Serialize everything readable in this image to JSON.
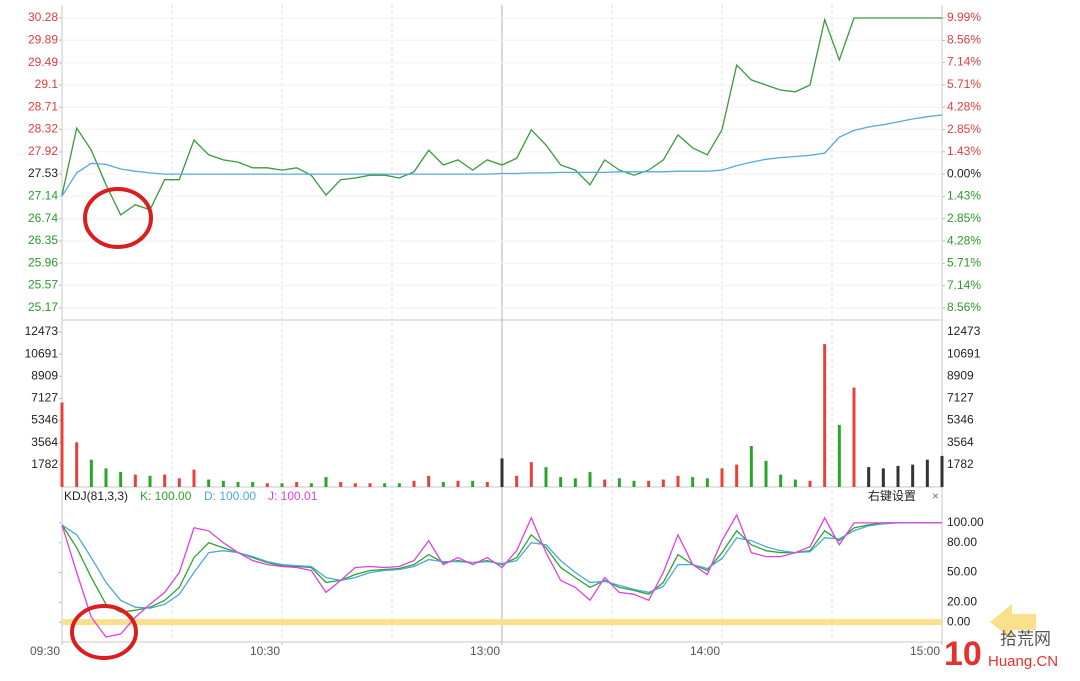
{
  "chart_data": [
    {
      "type": "line",
      "base": 27.53,
      "up_color": "#e03c3c",
      "down_color": "#2a9a2a",
      "base_color": "#222222",
      "tick_side": "left",
      "grid": true,
      "xlim": [
        0,
        240
      ],
      "xgrid": [
        30,
        60,
        90,
        120,
        150,
        180,
        210
      ],
      "x": [
        0,
        4,
        8,
        12,
        16,
        20,
        24,
        28,
        32,
        36,
        40,
        44,
        48,
        52,
        56,
        60,
        64,
        68,
        72,
        76,
        80,
        84,
        88,
        92,
        96,
        100,
        104,
        108,
        112,
        116,
        120,
        124,
        128,
        132,
        136,
        140,
        144,
        148,
        152,
        156,
        160,
        164,
        168,
        172,
        176,
        180,
        184,
        188,
        192,
        196,
        200,
        204,
        208,
        212,
        216,
        220,
        224,
        228,
        232,
        236,
        240
      ],
      "ylim": [
        25.17,
        30.28
      ],
      "yticks": [
        30.28,
        29.89,
        29.49,
        29.1,
        28.71,
        28.32,
        27.92,
        27.53,
        27.14,
        26.74,
        26.35,
        25.96,
        25.57,
        25.17
      ],
      "y2lim": [
        -8.56,
        9.99
      ],
      "y2ticks": [
        {
          "value": 9.99,
          "label": "9.99%"
        },
        {
          "value": 8.56,
          "label": "8.56%"
        },
        {
          "value": 7.14,
          "label": "7.14%"
        },
        {
          "value": 5.71,
          "label": "5.71%"
        },
        {
          "value": 4.28,
          "label": "4.28%"
        },
        {
          "value": 2.85,
          "label": "2.85%"
        },
        {
          "value": 1.43,
          "label": "1.43%"
        },
        {
          "value": 0,
          "label": "0.00%"
        },
        {
          "value": -1.43,
          "label": "1.43%"
        },
        {
          "value": -2.85,
          "label": "2.85%"
        },
        {
          "value": -4.28,
          "label": "4.28%"
        },
        {
          "value": -5.71,
          "label": "5.71%"
        },
        {
          "value": -7.14,
          "label": "7.14%"
        },
        {
          "value": -8.56,
          "label": "8.56%"
        }
      ],
      "series": [
        {
          "color": "#3a9a3a",
          "values": [
            27.16,
            28.34,
            27.95,
            27.34,
            26.81,
            26.99,
            26.9,
            27.43,
            27.43,
            28.13,
            27.87,
            27.78,
            27.74,
            27.64,
            27.64,
            27.6,
            27.64,
            27.51,
            27.16,
            27.43,
            27.46,
            27.51,
            27.51,
            27.46,
            27.57,
            27.95,
            27.69,
            27.78,
            27.6,
            27.78,
            27.69,
            27.81,
            28.31,
            28.04,
            27.69,
            27.6,
            27.34,
            27.78,
            27.6,
            27.51,
            27.6,
            27.78,
            28.22,
            27.99,
            27.87,
            28.31,
            29.45,
            29.19,
            29.1,
            29.01,
            28.98,
            29.1,
            30.25,
            29.54,
            30.28,
            30.28,
            30.28,
            30.28,
            30.28,
            30.28,
            30.28
          ]
        },
        {
          "color": "#55a9e0",
          "values": [
            27.14,
            27.55,
            27.72,
            27.7,
            27.62,
            27.58,
            27.55,
            27.53,
            27.53,
            27.53,
            27.53,
            27.53,
            27.53,
            27.53,
            27.53,
            27.53,
            27.53,
            27.53,
            27.53,
            27.53,
            27.53,
            27.53,
            27.53,
            27.53,
            27.53,
            27.53,
            27.53,
            27.53,
            27.53,
            27.53,
            27.54,
            27.54,
            27.55,
            27.55,
            27.56,
            27.56,
            27.56,
            27.56,
            27.57,
            27.57,
            27.57,
            27.57,
            27.58,
            27.58,
            27.58,
            27.6,
            27.68,
            27.74,
            27.79,
            27.82,
            27.84,
            27.86,
            27.9,
            28.18,
            28.3,
            28.36,
            28.4,
            28.45,
            28.5,
            28.54,
            28.57
          ]
        }
      ]
    },
    {
      "type": "bar",
      "tick_side": "both",
      "xlim": [
        0,
        240
      ],
      "x": [
        0,
        4,
        8,
        12,
        16,
        20,
        24,
        28,
        32,
        36,
        40,
        44,
        48,
        52,
        56,
        60,
        64,
        68,
        72,
        76,
        80,
        84,
        88,
        92,
        96,
        100,
        104,
        108,
        112,
        116,
        120,
        124,
        128,
        132,
        136,
        140,
        144,
        148,
        152,
        156,
        160,
        164,
        168,
        172,
        176,
        180,
        184,
        188,
        192,
        196,
        200,
        204,
        208,
        212,
        216,
        220,
        224,
        228,
        232,
        236,
        240
      ],
      "ylim": [
        0,
        12473
      ],
      "yticks": [
        12473,
        10691,
        8909,
        7127,
        5346,
        3564,
        1782
      ],
      "values": [
        6800,
        3600,
        2200,
        1500,
        1200,
        1000,
        900,
        1000,
        700,
        1400,
        600,
        500,
        400,
        400,
        300,
        300,
        400,
        300,
        800,
        400,
        300,
        300,
        300,
        300,
        500,
        900,
        400,
        500,
        500,
        400,
        2300,
        900,
        2000,
        1600,
        800,
        700,
        1200,
        600,
        700,
        500,
        500,
        600,
        900,
        800,
        700,
        1500,
        1800,
        3300,
        2100,
        1000,
        600,
        500,
        11500,
        5000,
        8000,
        1600,
        1500,
        1700,
        1800,
        2200,
        2500
      ],
      "colors": [
        "#e8413c",
        "#e8413c",
        "#2aa52a",
        "#2aa52a",
        "#2aa52a",
        "#e8413c",
        "#2aa52a",
        "#e8413c",
        "#e8413c",
        "#e8413c",
        "#2aa52a",
        "#2aa52a",
        "#2aa52a",
        "#2aa52a",
        "#e8413c",
        "#2aa52a",
        "#e8413c",
        "#2aa52a",
        "#2aa52a",
        "#e8413c",
        "#e8413c",
        "#e8413c",
        "#2aa52a",
        "#2aa52a",
        "#e8413c",
        "#e8413c",
        "#2aa52a",
        "#e8413c",
        "#2aa52a",
        "#e8413c",
        "#333333",
        "#e8413c",
        "#e8413c",
        "#2aa52a",
        "#2aa52a",
        "#2aa52a",
        "#2aa52a",
        "#e8413c",
        "#2aa52a",
        "#2aa52a",
        "#e8413c",
        "#e8413c",
        "#e8413c",
        "#2aa52a",
        "#2aa52a",
        "#e8413c",
        "#e8413c",
        "#2aa52a",
        "#2aa52a",
        "#2aa52a",
        "#2aa52a",
        "#e8413c",
        "#e8413c",
        "#2aa52a",
        "#e8413c",
        "#333333",
        "#333333",
        "#333333",
        "#333333",
        "#333333",
        "#333333"
      ]
    },
    {
      "type": "line",
      "title": "KDJ(81,3,3)",
      "menu": "右键设置",
      "close": "×",
      "tick_side": "right",
      "highlight": 0,
      "highlight_color": "#f9e08c",
      "xlim": [
        0,
        240
      ],
      "xticks": [
        {
          "value": 0,
          "label": "09:30"
        },
        {
          "value": 60,
          "label": "10:30"
        },
        {
          "value": 120,
          "label": "13:00"
        },
        {
          "value": 180,
          "label": "14:00"
        },
        {
          "value": 240,
          "label": "15:00"
        }
      ],
      "x": [
        0,
        4,
        8,
        12,
        16,
        20,
        24,
        28,
        32,
        36,
        40,
        44,
        48,
        52,
        56,
        60,
        64,
        68,
        72,
        76,
        80,
        84,
        88,
        92,
        96,
        100,
        104,
        108,
        112,
        116,
        120,
        124,
        128,
        132,
        136,
        140,
        144,
        148,
        152,
        156,
        160,
        164,
        168,
        172,
        176,
        180,
        184,
        188,
        192,
        196,
        200,
        204,
        208,
        212,
        216,
        220,
        224,
        228,
        232,
        236,
        240
      ],
      "ylim": [
        -18,
        118
      ],
      "yticks": [
        {
          "value": 100,
          "label": "100.00"
        },
        {
          "value": 80,
          "label": "80.00"
        },
        {
          "value": 50,
          "label": "50.00"
        },
        {
          "value": 20,
          "label": "20.00"
        },
        {
          "value": 0,
          "label": "0.00"
        }
      ],
      "series": [
        {
          "name": "K: 100.00",
          "color": "#2aa52a",
          "values": [
            98,
            75,
            45,
            18,
            10,
            12,
            15,
            22,
            35,
            65,
            80,
            75,
            70,
            65,
            60,
            57,
            56,
            55,
            40,
            42,
            48,
            52,
            53,
            54,
            58,
            68,
            60,
            62,
            60,
            62,
            58,
            65,
            88,
            75,
            55,
            45,
            35,
            42,
            35,
            32,
            28,
            40,
            68,
            58,
            52,
            70,
            92,
            78,
            72,
            70,
            70,
            72,
            92,
            82,
            95,
            98,
            100,
            100,
            100,
            100,
            100
          ]
        },
        {
          "name": "D: 100.00",
          "color": "#4aa8d8",
          "values": [
            98,
            88,
            65,
            40,
            22,
            15,
            14,
            18,
            28,
            50,
            70,
            72,
            70,
            66,
            61,
            58,
            57,
            56,
            45,
            42,
            45,
            50,
            52,
            53,
            56,
            63,
            61,
            61,
            60,
            61,
            59,
            62,
            80,
            78,
            62,
            50,
            40,
            41,
            37,
            33,
            30,
            36,
            58,
            58,
            54,
            64,
            85,
            82,
            76,
            72,
            70,
            71,
            85,
            84,
            92,
            97,
            99,
            100,
            100,
            100,
            100
          ]
        },
        {
          "name": "J: 100.01",
          "color": "#e040e0",
          "values": [
            98,
            50,
            5,
            -15,
            -12,
            5,
            18,
            30,
            50,
            95,
            92,
            80,
            70,
            62,
            58,
            56,
            55,
            52,
            30,
            42,
            55,
            56,
            55,
            56,
            62,
            82,
            58,
            65,
            58,
            65,
            55,
            72,
            105,
            70,
            42,
            35,
            22,
            45,
            30,
            28,
            22,
            50,
            88,
            58,
            48,
            82,
            108,
            70,
            66,
            66,
            70,
            76,
            105,
            78,
            100,
            100,
            100,
            100,
            100,
            100,
            100.01
          ]
        }
      ]
    }
  ],
  "watermark": {
    "logo": "10",
    "name": "拾荒网",
    "site": "Huang.CN"
  }
}
